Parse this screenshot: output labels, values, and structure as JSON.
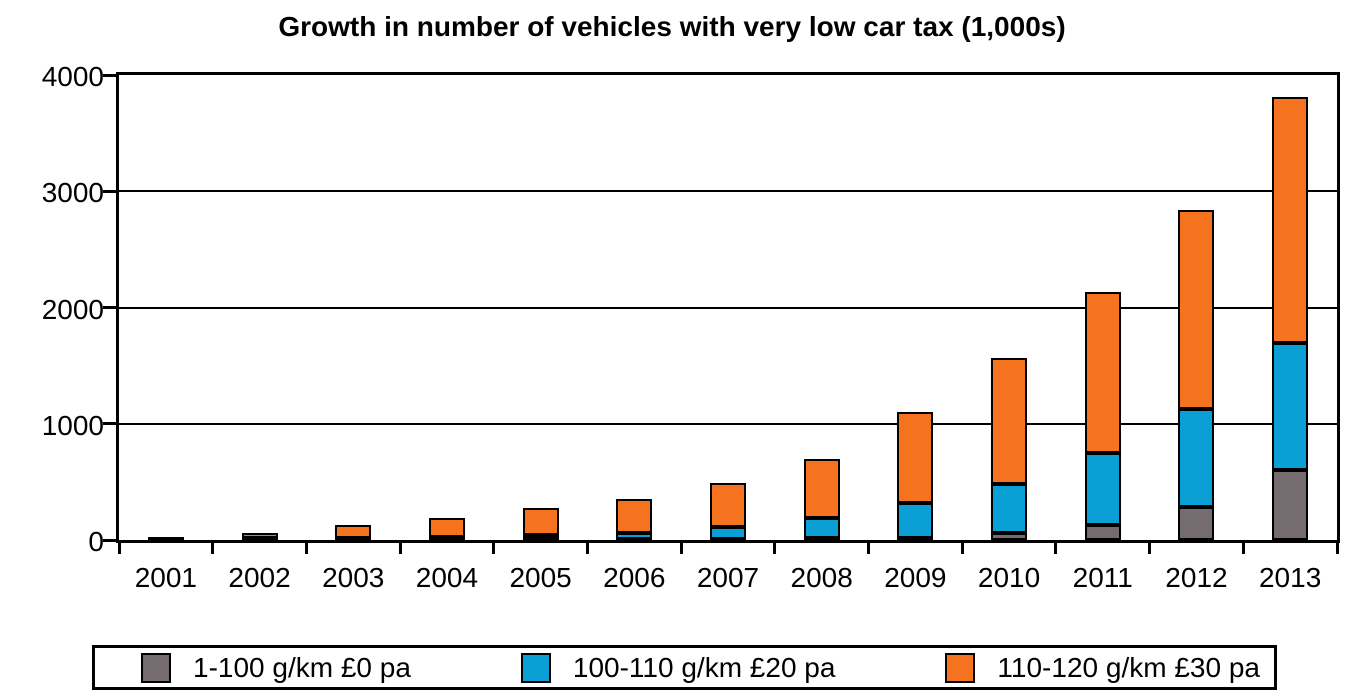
{
  "chart_data": {
    "type": "bar",
    "stacked": true,
    "title": "Growth in number of vehicles with very low car tax (1,000s)",
    "unit": "thousands of vehicles",
    "categories": [
      2001,
      2002,
      2003,
      2004,
      2005,
      2006,
      2007,
      2008,
      2009,
      2010,
      2011,
      2012,
      2013
    ],
    "series": [
      {
        "name": "1-100 g/km £0 pa",
        "color": "#746C6F",
        "values": [
          5,
          3,
          5,
          8,
          10,
          10,
          12,
          15,
          20,
          60,
          130,
          285,
          600
        ]
      },
      {
        "name": "100-110 g/km £20 pa",
        "color": "#0A9FD5",
        "values": [
          5,
          5,
          10,
          20,
          30,
          50,
          100,
          175,
          300,
          420,
          620,
          845,
          1095
        ]
      },
      {
        "name": "110-120 g/km £30 pa",
        "color": "#F5731F",
        "values": [
          8,
          45,
          110,
          165,
          230,
          295,
          380,
          510,
          780,
          1090,
          1380,
          1710,
          2120
        ]
      }
    ],
    "totals": [
      18,
      53,
      125,
      193,
      270,
      355,
      492,
      700,
      1100,
      1570,
      2130,
      2840,
      3815
    ],
    "xlabel": "",
    "ylabel": "",
    "ylim": [
      0,
      4000
    ],
    "yticks": [
      0,
      1000,
      2000,
      3000,
      4000
    ],
    "grid": "horizontal",
    "legend_position": "bottom",
    "axis_color": "#000000",
    "background_color": "#FFFFFF",
    "bar_border_color": "#000000"
  }
}
